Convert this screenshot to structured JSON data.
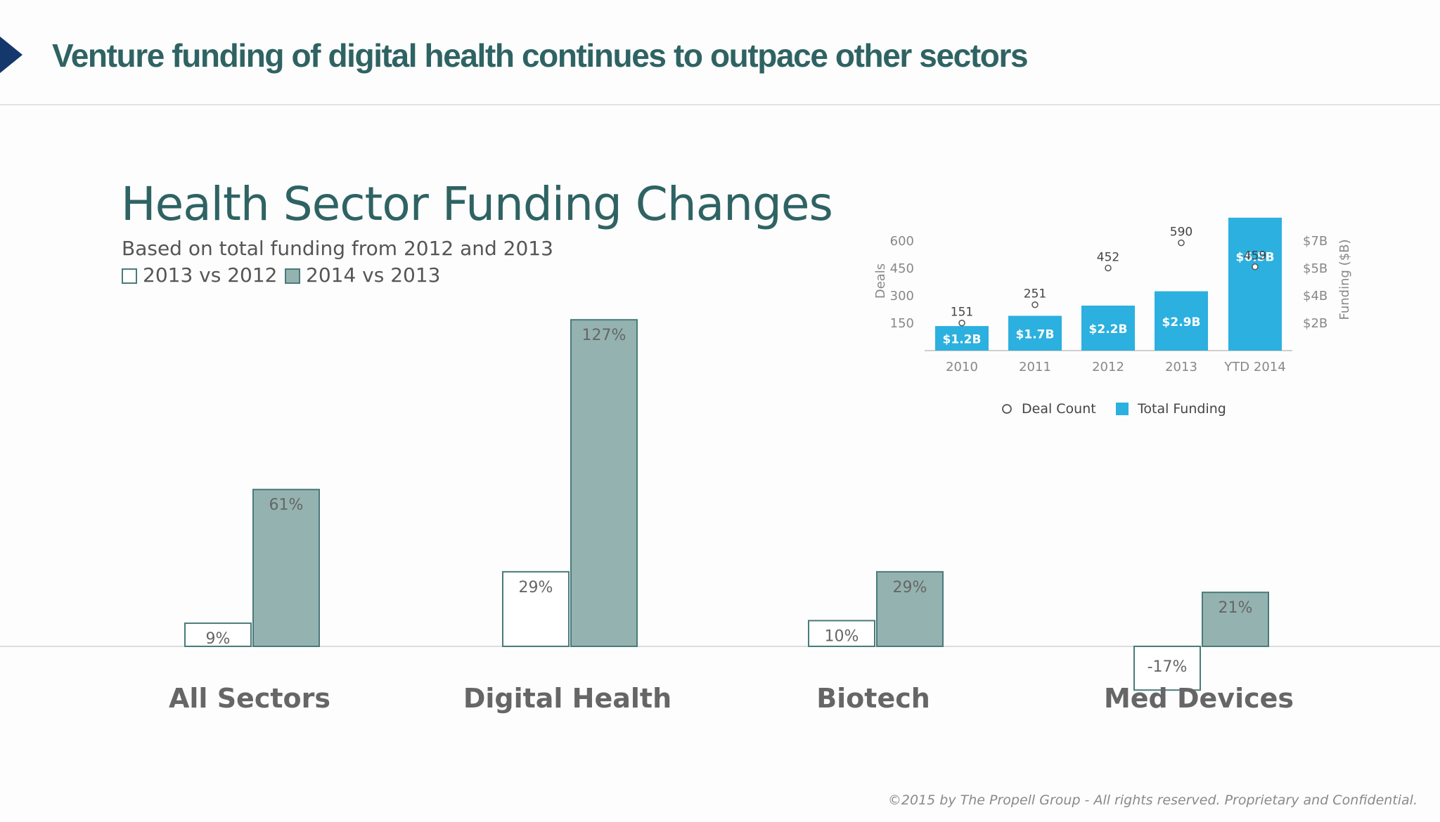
{
  "slide": {
    "title": "Venture funding of digital health continues to outpace other sectors",
    "copyright": "©2015 by The Propell Group -  All rights reserved. Proprietary and Confidential."
  },
  "colors": {
    "title_teal": "#2f6363",
    "bar_fill": "#94b3b0",
    "bar_border": "#4a7a7a",
    "funding_blue": "#2bb0df",
    "arrow_navy": "#14386b"
  },
  "chart_data": [
    {
      "type": "bar",
      "title": "Health Sector Funding Changes",
      "subtitle": "Based on total funding from 2012 and 2013",
      "categories": [
        "All Sectors",
        "Digital Health",
        "Biotech",
        "Med Devices"
      ],
      "series": [
        {
          "name": "2013 vs 2012",
          "values": [
            9,
            29,
            10,
            -17
          ],
          "labels": [
            "9%",
            "29%",
            "10%",
            "-17%"
          ],
          "style": "outline"
        },
        {
          "name": "2014 vs 2013",
          "values": [
            61,
            127,
            29,
            21
          ],
          "labels": [
            "61%",
            "127%",
            "29%",
            "21%"
          ],
          "style": "filled"
        }
      ],
      "unit": "%",
      "legend_position": "top-left",
      "grid": false
    },
    {
      "type": "bar",
      "categories": [
        "2010",
        "2011",
        "2012",
        "2013",
        "YTD 2014"
      ],
      "series": [
        {
          "name": "Total Funding",
          "values": [
            1.2,
            1.7,
            2.2,
            2.9,
            6.5
          ],
          "labels": [
            "$1.2B",
            "$1.7B",
            "$2.2B",
            "$2.9B",
            "$6.5B"
          ],
          "axis": "right",
          "type": "bar"
        },
        {
          "name": "Deal Count",
          "values": [
            151,
            251,
            452,
            590,
            459
          ],
          "labels": [
            "151",
            "251",
            "452",
            "590",
            "459"
          ],
          "axis": "left",
          "type": "scatter"
        }
      ],
      "ylabel_left": "Deals",
      "ylabel_right": "Funding ($B)",
      "left_ticks": [
        "150",
        "300",
        "450",
        "600"
      ],
      "left_tick_values": [
        150,
        300,
        450,
        600
      ],
      "right_ticks": [
        "$2B",
        "$4B",
        "$5B",
        "$7B"
      ],
      "legend_position": "bottom",
      "grid": false
    }
  ]
}
